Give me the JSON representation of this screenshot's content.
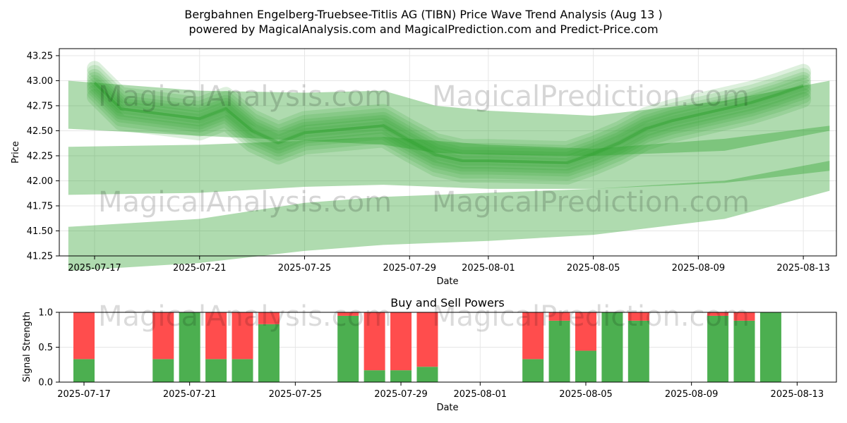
{
  "title_line1": "Bergbahnen Engelberg-Truebsee-Titlis AG (TIBN) Price Wave Trend Analysis (Aug 13 )",
  "title_line2": "powered by MagicalAnalysis.com and MagicalPrediction.com and Predict-Price.com",
  "watermarks": [
    "MagicalAnalysis.com",
    "MagicalPrediction.com"
  ],
  "colors": {
    "wave": "#2ca02c",
    "buy": "#4caf50",
    "sell": "#ff4d4d",
    "grid": "#e6e6e6"
  },
  "chart_data": [
    {
      "type": "area",
      "xlabel": "Date",
      "ylabel": "Price",
      "ylim": [
        41.25,
        43.32
      ],
      "grid": true,
      "x_ticks": [
        "2025-07-17",
        "2025-07-21",
        "2025-07-25",
        "2025-07-29",
        "2025-08-01",
        "2025-08-05",
        "2025-08-09",
        "2025-08-13"
      ],
      "y_ticks": [
        "41.25",
        "41.50",
        "41.75",
        "42.00",
        "42.25",
        "42.50",
        "42.75",
        "43.00",
        "43.25"
      ],
      "price_trend": {
        "x": [
          "2025-07-17",
          "2025-07-18",
          "2025-07-21",
          "2025-07-22",
          "2025-07-23",
          "2025-07-24",
          "2025-07-25",
          "2025-07-28",
          "2025-07-29",
          "2025-07-30",
          "2025-07-31",
          "2025-08-01",
          "2025-08-04",
          "2025-08-05",
          "2025-08-06",
          "2025-08-07",
          "2025-08-08",
          "2025-08-11",
          "2025-08-12",
          "2025-08-13"
        ],
        "y": [
          42.98,
          42.72,
          42.62,
          42.72,
          42.5,
          42.38,
          42.48,
          42.55,
          42.4,
          42.26,
          42.2,
          42.2,
          42.18,
          42.27,
          42.38,
          42.52,
          42.6,
          42.78,
          42.86,
          42.95
        ]
      },
      "bands": [
        {
          "x": [
            "2025-07-16",
            "2025-07-21",
            "2025-07-25",
            "2025-07-28",
            "2025-07-30",
            "2025-08-01",
            "2025-08-05",
            "2025-08-10",
            "2025-08-14"
          ],
          "upper": [
            43.0,
            42.9,
            42.88,
            42.9,
            42.75,
            42.7,
            42.65,
            42.8,
            43.0
          ],
          "lower": [
            42.52,
            42.45,
            42.4,
            42.36,
            42.28,
            42.26,
            42.25,
            42.3,
            42.5
          ]
        },
        {
          "x": [
            "2025-07-16",
            "2025-07-21",
            "2025-07-25",
            "2025-07-28",
            "2025-07-30",
            "2025-08-01",
            "2025-08-05",
            "2025-08-10",
            "2025-08-14"
          ],
          "upper": [
            42.34,
            42.36,
            42.4,
            42.44,
            42.4,
            42.36,
            42.32,
            42.42,
            42.55
          ],
          "lower": [
            41.86,
            41.88,
            41.94,
            41.96,
            41.94,
            41.92,
            41.92,
            41.98,
            42.1
          ]
        },
        {
          "x": [
            "2025-07-16",
            "2025-07-21",
            "2025-07-25",
            "2025-07-28",
            "2025-07-30",
            "2025-08-01",
            "2025-08-05",
            "2025-08-10",
            "2025-08-14"
          ],
          "upper": [
            41.54,
            41.62,
            41.78,
            41.84,
            41.86,
            41.88,
            41.92,
            42.0,
            42.2
          ],
          "lower": [
            41.1,
            41.18,
            41.3,
            41.36,
            41.38,
            41.4,
            41.46,
            41.62,
            41.9
          ]
        }
      ]
    },
    {
      "type": "bar",
      "title": "Buy and Sell Powers",
      "xlabel": "Date",
      "ylabel": "Signal Strength",
      "ylim": [
        0,
        1
      ],
      "grid": true,
      "x_ticks": [
        "2025-07-17",
        "2025-07-21",
        "2025-07-25",
        "2025-07-29",
        "2025-08-01",
        "2025-08-05",
        "2025-08-09",
        "2025-08-13"
      ],
      "y_ticks": [
        "0.0",
        "0.5",
        "1.0"
      ],
      "categories": [
        "2025-07-17",
        "2025-07-20",
        "2025-07-21",
        "2025-07-22",
        "2025-07-23",
        "2025-07-24",
        "2025-07-27",
        "2025-07-28",
        "2025-07-29",
        "2025-07-30",
        "2025-08-03",
        "2025-08-04",
        "2025-08-05",
        "2025-08-06",
        "2025-08-07",
        "2025-08-10",
        "2025-08-11",
        "2025-08-12"
      ],
      "series": [
        {
          "name": "Buy",
          "values": [
            0.33,
            0.33,
            1.0,
            0.33,
            0.33,
            0.83,
            0.95,
            0.17,
            0.17,
            0.22,
            0.33,
            0.88,
            0.45,
            1.0,
            0.88,
            0.95,
            0.88,
            1.0
          ]
        },
        {
          "name": "Sell",
          "values": [
            0.67,
            0.67,
            0.0,
            0.67,
            0.67,
            0.17,
            0.05,
            0.83,
            0.83,
            0.78,
            0.67,
            0.12,
            0.55,
            0.0,
            0.12,
            0.05,
            0.12,
            0.0
          ]
        }
      ]
    }
  ]
}
